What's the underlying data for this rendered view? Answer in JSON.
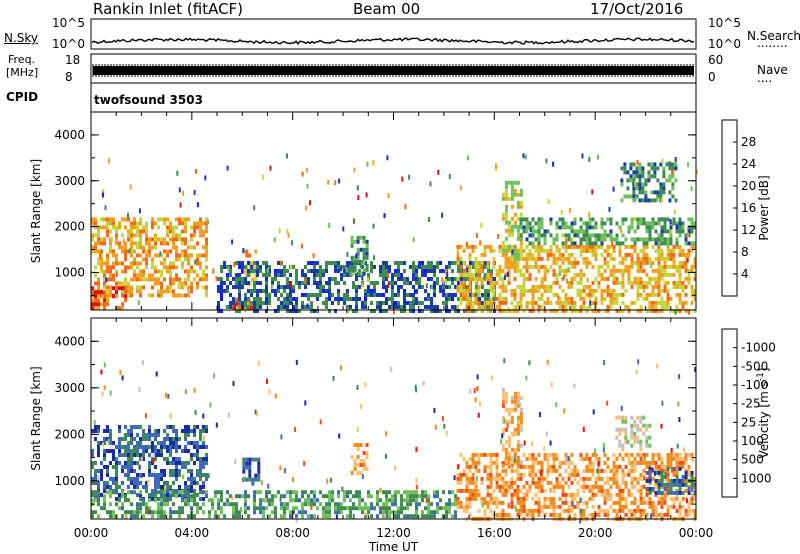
{
  "header": {
    "station": "Rankin Inlet (fitACF)",
    "beam": "Beam 00",
    "date": "17/Oct/2016"
  },
  "panels": {
    "nsky": {
      "left_label": "N.Sky",
      "right_label": "N.Search",
      "tick_top_left": "10^5",
      "tick_bottom_left": "10^0",
      "tick_top_right": "10^5",
      "tick_bottom_right": "10^0",
      "legend_dots": "........"
    },
    "freq": {
      "left_label_line1": "Freq.",
      "left_label_line2": "[MHz]",
      "right_label": "Nave",
      "tick_top_left": "18",
      "tick_bottom_left": "8",
      "tick_top_right": "60",
      "tick_bottom_right": "0",
      "legend_dots": "...."
    },
    "cpid": {
      "left_label": "CPID",
      "program": "twofsound 3503"
    }
  },
  "chart_data": [
    {
      "type": "heatmap",
      "name": "power",
      "xlabel": "",
      "ylabel": "Slant Range [km]",
      "ylim": [
        180,
        4500
      ],
      "yticks": [
        "1000",
        "2000",
        "3000",
        "4000"
      ],
      "colorbar_label": "Power [dB]",
      "colorbar_ticks": [
        "4",
        "8",
        "12",
        "16",
        "20",
        "24",
        "28"
      ],
      "colorbar_colors": [
        "#0a1ef0",
        "#1a3ca8",
        "#3f8a52",
        "#6fc05a",
        "#c8d43c",
        "#f0a020",
        "#f06a18",
        "#e01010"
      ],
      "data_regions": [
        {
          "t0": 0.0,
          "t1": 4.6,
          "r0": 500,
          "r1": 2200,
          "level": 0.72
        },
        {
          "t0": 0.0,
          "t1": 1.4,
          "r0": 200,
          "r1": 700,
          "level": 0.88
        },
        {
          "t0": 5.6,
          "t1": 6.6,
          "r0": 200,
          "r1": 450,
          "level": 0.9
        },
        {
          "t0": 6.0,
          "t1": 6.5,
          "r0": 800,
          "r1": 1500,
          "level": 0.65
        },
        {
          "t0": 5.0,
          "t1": 16.0,
          "r0": 200,
          "r1": 1250,
          "level": 0.2
        },
        {
          "t0": 10.3,
          "t1": 10.9,
          "r0": 1000,
          "r1": 1800,
          "level": 0.3
        },
        {
          "t0": 14.5,
          "t1": 24.0,
          "r0": 200,
          "r1": 1600,
          "level": 0.68
        },
        {
          "t0": 16.3,
          "t1": 17.1,
          "r0": 1300,
          "r1": 3000,
          "level": 0.55
        },
        {
          "t0": 17.0,
          "t1": 24.0,
          "r0": 1600,
          "r1": 2200,
          "level": 0.35
        },
        {
          "t0": 21.0,
          "t1": 23.2,
          "r0": 2600,
          "r1": 3400,
          "level": 0.3
        }
      ]
    },
    {
      "type": "heatmap",
      "name": "velocity",
      "xlabel": "Time UT",
      "ylabel": "Slant Range [km]",
      "ylim": [
        180,
        4500
      ],
      "yticks": [
        "1000",
        "2000",
        "3000",
        "4000"
      ],
      "xticks": [
        "00:00",
        "04:00",
        "08:00",
        "12:00",
        "16:00",
        "20:00",
        "00:00"
      ],
      "xlim_hours": [
        0,
        24
      ],
      "colorbar_label": "Velocity [m s^-1]",
      "colorbar_ticks": [
        "1000",
        "500",
        "100",
        "25",
        "-25",
        "-100",
        "-500",
        "-1000"
      ],
      "colorbar_colors": [
        "#1a2ca0",
        "#3c6ab4",
        "#3f8a52",
        "#6fc05a",
        "#c0c0c0",
        "#f8c070",
        "#f08c20",
        "#f05018",
        "#e01010"
      ],
      "data_regions": [
        {
          "t0": 0.0,
          "t1": 4.6,
          "r0": 600,
          "r1": 2200,
          "level": 0.12
        },
        {
          "t0": 0.0,
          "t1": 14.5,
          "r0": 200,
          "r1": 800,
          "level": 0.28
        },
        {
          "t0": 6.0,
          "t1": 6.6,
          "r0": 900,
          "r1": 1500,
          "level": 0.1
        },
        {
          "t0": 10.3,
          "t1": 10.9,
          "r0": 1200,
          "r1": 1900,
          "level": 0.7
        },
        {
          "t0": 14.5,
          "t1": 24.0,
          "r0": 200,
          "r1": 1600,
          "level": 0.72
        },
        {
          "t0": 16.3,
          "t1": 17.1,
          "r0": 1300,
          "r1": 3000,
          "level": 0.68
        },
        {
          "t0": 20.8,
          "t1": 22.2,
          "r0": 1700,
          "r1": 2400,
          "level": 0.5
        },
        {
          "t0": 22.0,
          "t1": 24.0,
          "r0": 700,
          "r1": 1300,
          "level": 0.12
        }
      ]
    }
  ]
}
